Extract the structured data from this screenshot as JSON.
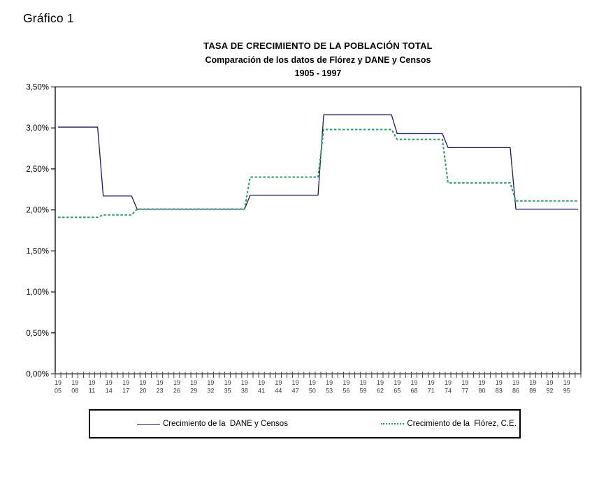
{
  "page": {
    "heading": "Gráfico 1",
    "background": "#ffffff"
  },
  "chart_data": {
    "type": "line",
    "title": "TASA DE CRECIMIENTO DE LA POBLACIÓN TOTAL",
    "subtitle": "Comparación de los datos de Flórez y DANE y Censos",
    "period_label": "1905 - 1997",
    "grid": false,
    "legend_position": "bottom",
    "axis_color": "#000000",
    "tick_label_color": "#3a3a3a",
    "x_axis": {
      "start_year": 1905,
      "end_year": 1997,
      "tick_interval_years": 1,
      "label_years": [
        1905,
        1908,
        1911,
        1914,
        1917,
        1920,
        1923,
        1926,
        1929,
        1932,
        1935,
        1938,
        1941,
        1944,
        1947,
        1950,
        1953,
        1956,
        1959,
        1962,
        1965,
        1968,
        1971,
        1974,
        1977,
        1980,
        1983,
        1986,
        1989,
        1992,
        1995
      ]
    },
    "y_axis": {
      "min": 0,
      "max": 3.5,
      "tick_step": 0.5,
      "tick_labels": [
        "0,00%",
        "0,50%",
        "1,00%",
        "1,50%",
        "2,00%",
        "2,50%",
        "3,00%",
        "3,50%"
      ],
      "unit": "%"
    },
    "series": [
      {
        "name": "Crecimiento de la  DANE y Censos",
        "color": "#1A1A68",
        "line_style": "solid",
        "segments": [
          {
            "from_year": 1905,
            "to_year": 1912,
            "rate_pct": 3.01
          },
          {
            "from_year": 1912,
            "to_year": 1918,
            "rate_pct": 2.17
          },
          {
            "from_year": 1918,
            "to_year": 1938,
            "rate_pct": 2.01
          },
          {
            "from_year": 1938,
            "to_year": 1951,
            "rate_pct": 2.18
          },
          {
            "from_year": 1951,
            "to_year": 1964,
            "rate_pct": 3.16
          },
          {
            "from_year": 1964,
            "to_year": 1973,
            "rate_pct": 2.93
          },
          {
            "from_year": 1973,
            "to_year": 1985,
            "rate_pct": 2.76
          },
          {
            "from_year": 1985,
            "to_year": 1997,
            "rate_pct": 2.01
          }
        ]
      },
      {
        "name": "Crecimiento de la  Flórez, C.E.",
        "color": "#339966",
        "line_style": "dashed",
        "segments": [
          {
            "from_year": 1905,
            "to_year": 1912,
            "rate_pct": 1.91
          },
          {
            "from_year": 1912,
            "to_year": 1918,
            "rate_pct": 1.94
          },
          {
            "from_year": 1918,
            "to_year": 1938,
            "rate_pct": 2.01
          },
          {
            "from_year": 1938,
            "to_year": 1951,
            "rate_pct": 2.4
          },
          {
            "from_year": 1951,
            "to_year": 1964,
            "rate_pct": 2.98
          },
          {
            "from_year": 1964,
            "to_year": 1973,
            "rate_pct": 2.86
          },
          {
            "from_year": 1973,
            "to_year": 1985,
            "rate_pct": 2.33
          },
          {
            "from_year": 1985,
            "to_year": 1997,
            "rate_pct": 2.11
          }
        ]
      }
    ]
  }
}
